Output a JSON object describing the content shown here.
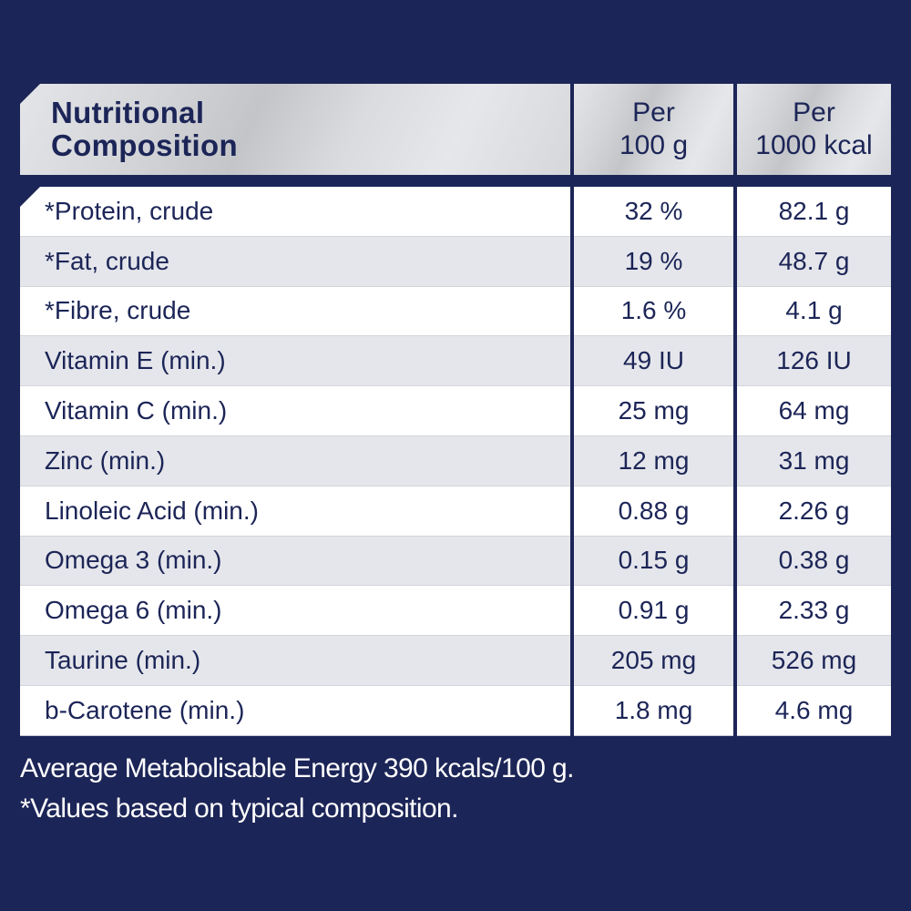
{
  "table": {
    "header": {
      "title_line1": "Nutritional",
      "title_line2": "Composition",
      "col1_line1": "Per",
      "col1_line2": "100 g",
      "col2_line1": "Per",
      "col2_line2": "1000 kcal"
    },
    "rows": [
      {
        "nutrient": "*Protein, crude",
        "per_100g": "32 %",
        "per_1000kcal": "82.1 g"
      },
      {
        "nutrient": "*Fat, crude",
        "per_100g": "19 %",
        "per_1000kcal": "48.7 g"
      },
      {
        "nutrient": "*Fibre, crude",
        "per_100g": "1.6 %",
        "per_1000kcal": "4.1 g"
      },
      {
        "nutrient": "Vitamin E (min.)",
        "per_100g": "49 IU",
        "per_1000kcal": "126 IU"
      },
      {
        "nutrient": "Vitamin C (min.)",
        "per_100g": "25 mg",
        "per_1000kcal": "64 mg"
      },
      {
        "nutrient": "Zinc (min.)",
        "per_100g": "12 mg",
        "per_1000kcal": "31 mg"
      },
      {
        "nutrient": "Linoleic Acid (min.)",
        "per_100g": "0.88 g",
        "per_1000kcal": "2.26 g"
      },
      {
        "nutrient": "Omega 3 (min.)",
        "per_100g": "0.15 g",
        "per_1000kcal": "0.38 g"
      },
      {
        "nutrient": "Omega 6 (min.)",
        "per_100g": "0.91 g",
        "per_1000kcal": "2.33 g"
      },
      {
        "nutrient": "Taurine (min.)",
        "per_100g": "205 mg",
        "per_1000kcal": "526 mg"
      },
      {
        "nutrient": "b-Carotene (min.)",
        "per_100g": "1.8 mg",
        "per_1000kcal": "4.6 mg"
      }
    ]
  },
  "footnotes": {
    "energy": "Average Metabolisable Energy 390 kcals/100 g.",
    "typical": "*Values based on typical composition."
  },
  "colors": {
    "background_navy": "#1c2557",
    "text_navy": "#1c2557",
    "row_alt": "#e5e6eb",
    "row_plain": "#ffffff",
    "header_silver": "#d2d4d8",
    "footnote_text": "#ffffff"
  }
}
